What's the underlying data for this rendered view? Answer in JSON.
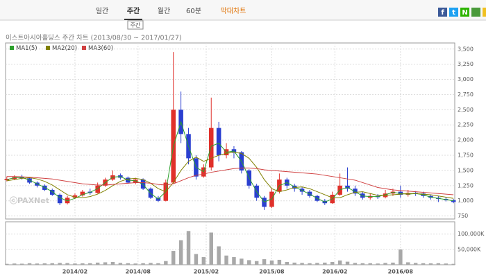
{
  "tabs": [
    "일간",
    "주간",
    "월간",
    "60분",
    "막대차트"
  ],
  "active_tab": 1,
  "tooltip": "주간",
  "share_icons": [
    "f",
    "t",
    "N"
  ],
  "watermark": "ⓒPAXNet",
  "chart_data": [
    {
      "type": "candlestick",
      "title": "이스트아시아홀딩스 주간 차트 (2013/08/30 ~ 2017/01/27)",
      "x": [
        0,
        3,
        6,
        9,
        12,
        15,
        18,
        21,
        24,
        27,
        30,
        33,
        36,
        39,
        42,
        45,
        48,
        51,
        54,
        57,
        60,
        63,
        66,
        69,
        72,
        75,
        78,
        81,
        84,
        87,
        90,
        93,
        96,
        99,
        102,
        105,
        108,
        111,
        114,
        117,
        120,
        123,
        126,
        129,
        132,
        135,
        138,
        141,
        144,
        147,
        150,
        153,
        156,
        159,
        162,
        165,
        168,
        171,
        174,
        177
      ],
      "open": [
        1340,
        1360,
        1390,
        1370,
        1300,
        1250,
        1180,
        1100,
        960,
        1050,
        1090,
        1150,
        1130,
        1250,
        1350,
        1420,
        1380,
        1300,
        1350,
        1200,
        1050,
        1000,
        1300,
        2500,
        2100,
        1700,
        1400,
        1550,
        2200,
        1750,
        1850,
        1800,
        1500,
        1250,
        1050,
        900,
        1150,
        1350,
        1250,
        1200,
        1150,
        1080,
        1000,
        960,
        1100,
        1250,
        1200,
        1120,
        1050,
        1080,
        1060,
        1120,
        1150,
        1100,
        1130,
        1120,
        1080,
        1050,
        1030,
        1010
      ],
      "close": [
        1360,
        1390,
        1370,
        1300,
        1250,
        1180,
        1100,
        960,
        1050,
        1090,
        1150,
        1130,
        1250,
        1350,
        1420,
        1380,
        1300,
        1350,
        1200,
        1050,
        1000,
        1300,
        2500,
        2100,
        1700,
        1400,
        1550,
        2200,
        1750,
        1850,
        1800,
        1500,
        1250,
        1050,
        900,
        1150,
        1350,
        1250,
        1200,
        1150,
        1080,
        1000,
        960,
        1100,
        1250,
        1200,
        1120,
        1050,
        1080,
        1060,
        1120,
        1150,
        1100,
        1130,
        1120,
        1080,
        1050,
        1030,
        1010,
        980
      ],
      "high": [
        1400,
        1420,
        1430,
        1390,
        1320,
        1270,
        1200,
        1120,
        1080,
        1120,
        1180,
        1200,
        1300,
        1380,
        1500,
        1450,
        1400,
        1380,
        1370,
        1220,
        1080,
        1350,
        3450,
        2800,
        2200,
        1750,
        1600,
        2700,
        2300,
        1950,
        1900,
        1820,
        1520,
        1280,
        1080,
        1200,
        1450,
        1380,
        1280,
        1230,
        1180,
        1100,
        1030,
        1150,
        1450,
        1550,
        1250,
        1150,
        1120,
        1110,
        1180,
        1200,
        1250,
        1180,
        1160,
        1150,
        1100,
        1080,
        1060,
        1030
      ],
      "low": [
        1320,
        1340,
        1350,
        1280,
        1220,
        1160,
        1080,
        930,
        940,
        1030,
        1070,
        1100,
        1120,
        1230,
        1330,
        1350,
        1280,
        1270,
        1180,
        1030,
        980,
        990,
        1280,
        1950,
        1600,
        1350,
        1380,
        1500,
        1650,
        1700,
        1700,
        1450,
        1200,
        1000,
        850,
        880,
        1120,
        1200,
        1150,
        1100,
        1050,
        980,
        930,
        950,
        1080,
        1150,
        1080,
        1020,
        1020,
        1030,
        1040,
        1080,
        1050,
        1070,
        1080,
        1050,
        1020,
        980,
        990,
        960
      ],
      "up_color": "#e0302a",
      "down_color": "#2a3fd0",
      "series": [
        {
          "name": "MA1(5)",
          "color": "#2ca02c",
          "values": [
            1350,
            1380,
            1385,
            1340,
            1280,
            1220,
            1150,
            1050,
            1000,
            1040,
            1100,
            1140,
            1200,
            1300,
            1390,
            1400,
            1340,
            1330,
            1270,
            1120,
            1030,
            1150,
            1900,
            2300,
            1900,
            1550,
            1480,
            1900,
            1950,
            1800,
            1820,
            1650,
            1380,
            1150,
            980,
            1030,
            1250,
            1300,
            1230,
            1170,
            1110,
            1040,
            980,
            1030,
            1180,
            1220,
            1150,
            1080,
            1070,
            1070,
            1100,
            1140,
            1120,
            1110,
            1120,
            1100,
            1060,
            1040,
            1020,
            1000
          ]
        },
        {
          "name": "MA2(20)",
          "color": "#808000",
          "values": [
            1330,
            1350,
            1370,
            1380,
            1360,
            1320,
            1260,
            1180,
            1100,
            1060,
            1050,
            1070,
            1110,
            1170,
            1250,
            1320,
            1360,
            1370,
            1350,
            1290,
            1200,
            1150,
            1300,
            1500,
            1650,
            1720,
            1650,
            1700,
            1750,
            1780,
            1800,
            1780,
            1700,
            1550,
            1350,
            1200,
            1150,
            1180,
            1220,
            1230,
            1200,
            1150,
            1100,
            1050,
            1050,
            1100,
            1140,
            1150,
            1120,
            1090,
            1090,
            1100,
            1110,
            1120,
            1120,
            1110,
            1100,
            1080,
            1060,
            1040
          ]
        },
        {
          "name": "MA3(60)",
          "color": "#d04040",
          "values": [
            1400,
            1400,
            1395,
            1390,
            1380,
            1370,
            1360,
            1340,
            1320,
            1300,
            1280,
            1270,
            1260,
            1260,
            1270,
            1280,
            1290,
            1300,
            1300,
            1290,
            1270,
            1260,
            1280,
            1330,
            1380,
            1420,
            1440,
            1470,
            1490,
            1510,
            1530,
            1540,
            1540,
            1530,
            1510,
            1500,
            1490,
            1480,
            1470,
            1460,
            1450,
            1440,
            1420,
            1400,
            1380,
            1360,
            1340,
            1300,
            1260,
            1220,
            1200,
            1180,
            1170,
            1160,
            1150,
            1140,
            1130,
            1120,
            1110,
            1100
          ]
        }
      ],
      "xlim": [
        0,
        177
      ],
      "ylim": [
        700,
        3600
      ],
      "yticks": [
        750,
        {
          "value": 1000,
          "label": "1,000"
        },
        {
          "value": 1250,
          "label": "1,250"
        },
        {
          "value": 1500,
          "label": "1,500"
        },
        {
          "value": 1750,
          "label": "1,750"
        },
        {
          "value": 2000,
          "label": "2,000"
        },
        {
          "value": 2250,
          "label": "2,250"
        },
        {
          "value": 2500,
          "label": "2,500"
        },
        {
          "value": 2750,
          "label": "2,750"
        },
        {
          "value": 3000,
          "label": "3,000"
        },
        {
          "value": 3250,
          "label": "3,250"
        },
        {
          "value": 3500,
          "label": "3,500"
        }
      ],
      "grid": true
    },
    {
      "type": "bar",
      "x": [
        0,
        3,
        6,
        9,
        12,
        15,
        18,
        21,
        24,
        27,
        30,
        33,
        36,
        39,
        42,
        45,
        48,
        51,
        54,
        57,
        60,
        63,
        66,
        69,
        72,
        75,
        78,
        81,
        84,
        87,
        90,
        93,
        96,
        99,
        102,
        105,
        108,
        111,
        114,
        117,
        120,
        123,
        126,
        129,
        132,
        135,
        138,
        141,
        144,
        147,
        150,
        153,
        156,
        159,
        162,
        165,
        168,
        171,
        174,
        177
      ],
      "values": [
        3000,
        4000,
        3500,
        5000,
        4000,
        4500,
        5000,
        6000,
        5500,
        4000,
        4500,
        5000,
        7000,
        8000,
        9000,
        6000,
        5000,
        4000,
        5000,
        6000,
        5000,
        12000,
        45000,
        80000,
        110000,
        35000,
        25000,
        105000,
        60000,
        30000,
        25000,
        20000,
        15000,
        12000,
        18000,
        14000,
        16000,
        9000,
        7000,
        6000,
        5000,
        6000,
        7000,
        9000,
        14000,
        10000,
        6000,
        5000,
        5000,
        4000,
        6000,
        7000,
        50000,
        8000,
        6000,
        5000,
        4500,
        5000,
        4000,
        3000
      ],
      "color": "#a8a8a8",
      "xlim": [
        0,
        177
      ],
      "ylim": [
        0,
        140000
      ],
      "yticks": [
        {
          "value": 50000,
          "label": "50,000K"
        },
        {
          "value": 100000,
          "label": "100,000K"
        }
      ],
      "xticks": [
        {
          "value": 27,
          "label": "2014/02"
        },
        {
          "value": 52,
          "label": "2014/08"
        },
        {
          "value": 79,
          "label": "2015/02"
        },
        {
          "value": 105,
          "label": "2015/08"
        },
        {
          "value": 130,
          "label": "2016/02"
        },
        {
          "value": 156,
          "label": "2016/08"
        }
      ],
      "grid": true
    }
  ]
}
